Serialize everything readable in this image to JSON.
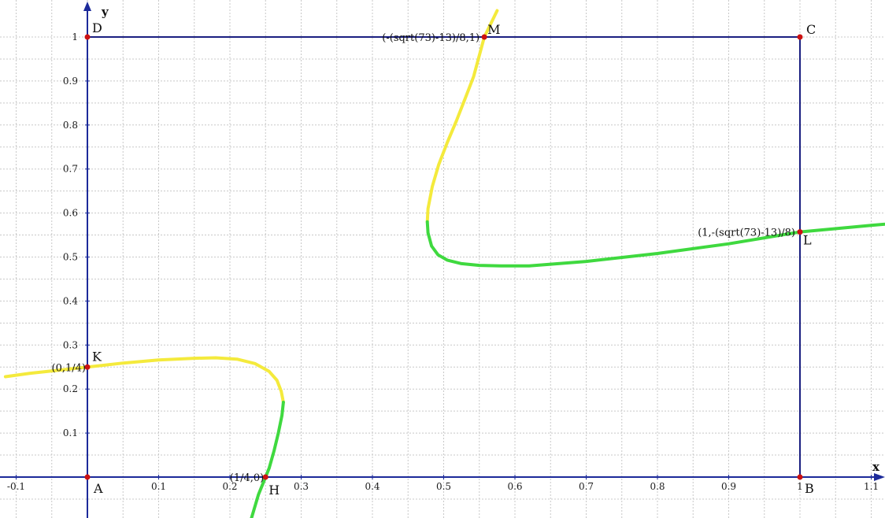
{
  "chart_data": {
    "type": "line",
    "title": "",
    "xlabel": "x",
    "ylabel": "y",
    "xlim": [
      -0.115,
      1.235
    ],
    "ylim": [
      -0.095,
      1.04
    ],
    "grid": true,
    "colors": {
      "axis": "#1c2a9a",
      "square": "#1a1f80",
      "point": "#cc1111",
      "yellow": "#f4ea3c",
      "green": "#3fd93f"
    },
    "x_ticks": [
      {
        "v": -0.1,
        "t": "-0.1"
      },
      {
        "v": 0.1,
        "t": "0.1"
      },
      {
        "v": 0.2,
        "t": "0.2"
      },
      {
        "v": 0.3,
        "t": "0.3"
      },
      {
        "v": 0.4,
        "t": "0.4"
      },
      {
        "v": 0.5,
        "t": "0.5"
      },
      {
        "v": 0.6,
        "t": "0.6"
      },
      {
        "v": 0.7,
        "t": "0.7"
      },
      {
        "v": 0.8,
        "t": "0.8"
      },
      {
        "v": 0.9,
        "t": "0.9"
      },
      {
        "v": 1.0,
        "t": "1"
      },
      {
        "v": 1.1,
        "t": "1.1"
      }
    ],
    "y_ticks": [
      {
        "v": 0.1,
        "t": "0.1"
      },
      {
        "v": 0.2,
        "t": "0.2"
      },
      {
        "v": 0.3,
        "t": "0.3"
      },
      {
        "v": 0.4,
        "t": "0.4"
      },
      {
        "v": 0.5,
        "t": "0.5"
      },
      {
        "v": 0.6,
        "t": "0.6"
      },
      {
        "v": 0.7,
        "t": "0.7"
      },
      {
        "v": 0.8,
        "t": "0.8"
      },
      {
        "v": 0.9,
        "t": "0.9"
      },
      {
        "v": 1.0,
        "t": "1"
      }
    ],
    "square": {
      "vertices": [
        "A",
        "B",
        "C",
        "D"
      ]
    },
    "points": [
      {
        "name": "A",
        "x": 0,
        "y": 0,
        "coord": ""
      },
      {
        "name": "B",
        "x": 1,
        "y": 0,
        "coord": ""
      },
      {
        "name": "C",
        "x": 1,
        "y": 1,
        "coord": ""
      },
      {
        "name": "D",
        "x": 0,
        "y": 1,
        "coord": ""
      },
      {
        "name": "K",
        "x": 0,
        "y": 0.25,
        "coord": "(0,1/4)"
      },
      {
        "name": "H",
        "x": 0.25,
        "y": 0,
        "coord": "(1/4,0)"
      },
      {
        "name": "L",
        "x": 1,
        "y": 0.557,
        "coord": "(1,-(sqrt(73)-13)/8)"
      },
      {
        "name": "M",
        "x": 0.557,
        "y": 1,
        "coord": "(-(sqrt(73)-13)/8,1)"
      }
    ],
    "series": [
      {
        "color": "yellow",
        "x": [
          -0.115,
          -0.08,
          -0.04,
          0.0,
          0.05,
          0.1,
          0.15,
          0.18,
          0.21,
          0.235,
          0.255,
          0.266,
          0.272,
          0.275
        ],
        "y": [
          0.228,
          0.236,
          0.243,
          0.25,
          0.259,
          0.266,
          0.27,
          0.271,
          0.268,
          0.258,
          0.24,
          0.22,
          0.195,
          0.17
        ]
      },
      {
        "color": "green",
        "x": [
          0.275,
          0.273,
          0.268,
          0.262,
          0.255,
          0.25,
          0.24,
          0.23
        ],
        "y": [
          0.17,
          0.14,
          0.1,
          0.06,
          0.02,
          0.0,
          -0.04,
          -0.095
        ]
      },
      {
        "color": "yellow",
        "x": [
          0.477,
          0.478,
          0.484,
          0.493,
          0.505,
          0.518,
          0.53,
          0.542,
          0.557,
          0.575
        ],
        "y": [
          0.58,
          0.61,
          0.66,
          0.71,
          0.76,
          0.81,
          0.86,
          0.91,
          1.0,
          1.06
        ]
      },
      {
        "color": "green",
        "x": [
          0.477,
          0.478,
          0.483,
          0.492,
          0.505,
          0.525,
          0.55,
          0.58,
          0.62,
          0.7,
          0.8,
          0.9,
          1.0,
          1.1,
          1.235
        ],
        "y": [
          0.58,
          0.555,
          0.525,
          0.505,
          0.493,
          0.485,
          0.481,
          0.48,
          0.48,
          0.49,
          0.508,
          0.53,
          0.557,
          0.572,
          0.592
        ]
      }
    ]
  }
}
